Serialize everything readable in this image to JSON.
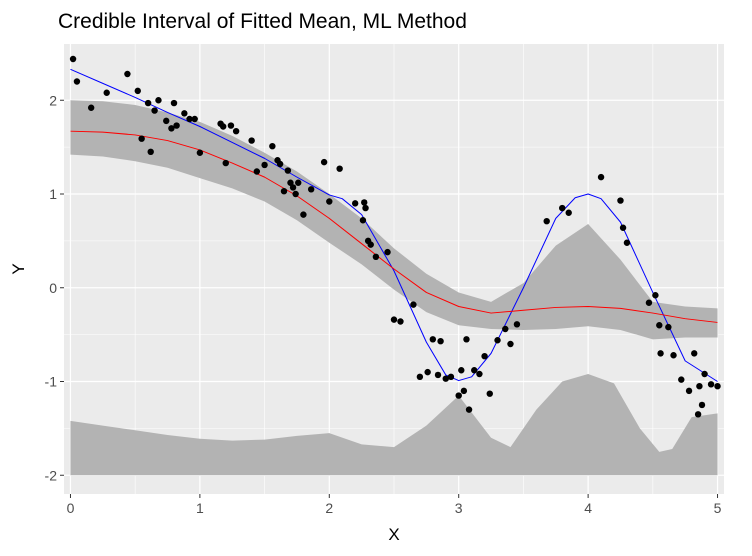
{
  "chart_data": {
    "type": "scatter",
    "title": "Credible Interval of Fitted Mean, ML Method",
    "xlabel": "X",
    "ylabel": "Y",
    "xlim": [
      -0.05,
      5.05
    ],
    "ylim": [
      -2.2,
      2.6
    ],
    "x_ticks": [
      0,
      1,
      2,
      3,
      4,
      5
    ],
    "y_ticks": [
      -2,
      -1,
      0,
      1,
      2
    ],
    "grid": true,
    "colors": {
      "panel": "#ebebeb",
      "grid": "#ffffff",
      "ribbon": "#b3b3b3",
      "points": "#000000",
      "true_curve": "#0000ff",
      "fitted_curve": "#ff0000"
    },
    "series": [
      {
        "kind": "points",
        "x": [
          0.02,
          0.05,
          0.16,
          0.28,
          0.44,
          0.52,
          0.55,
          0.6,
          0.62,
          0.65,
          0.68,
          0.74,
          0.78,
          0.8,
          0.82,
          0.88,
          0.92,
          0.96,
          1.0,
          1.16,
          1.18,
          1.2,
          1.24,
          1.28,
          1.4,
          1.44,
          1.5,
          1.56,
          1.6,
          1.62,
          1.65,
          1.68,
          1.7,
          1.72,
          1.74,
          1.76,
          1.8,
          1.86,
          1.96,
          2.0,
          2.08,
          2.2,
          2.26,
          2.27,
          2.28,
          2.3,
          2.32,
          2.36,
          2.45,
          2.5,
          2.55,
          2.65,
          2.7,
          2.76,
          2.8,
          2.84,
          2.86,
          2.9,
          2.94,
          3.0,
          3.02,
          3.04,
          3.06,
          3.08,
          3.12,
          3.16,
          3.2,
          3.24,
          3.3,
          3.36,
          3.4,
          3.45,
          3.68,
          3.8,
          3.85,
          4.1,
          4.25,
          4.27,
          4.3,
          4.47,
          4.52,
          4.55,
          4.56,
          4.62,
          4.66,
          4.72,
          4.78,
          4.82,
          4.85,
          4.86,
          4.88,
          4.9,
          4.95,
          5.0
        ],
        "y": [
          2.44,
          2.2,
          1.92,
          2.08,
          2.28,
          2.1,
          1.59,
          1.97,
          1.45,
          1.89,
          2.0,
          1.78,
          1.7,
          1.97,
          1.73,
          1.86,
          1.8,
          1.8,
          1.44,
          1.75,
          1.72,
          1.33,
          1.73,
          1.67,
          1.57,
          1.24,
          1.31,
          1.51,
          1.36,
          1.32,
          1.03,
          1.25,
          1.12,
          1.07,
          1.0,
          1.12,
          0.78,
          1.05,
          1.34,
          0.92,
          1.27,
          0.9,
          0.72,
          0.91,
          0.85,
          0.5,
          0.46,
          0.33,
          0.38,
          -0.34,
          -0.36,
          -0.18,
          -0.95,
          -0.9,
          -0.55,
          -0.93,
          -0.57,
          -0.97,
          -0.95,
          -1.15,
          -0.88,
          -1.1,
          -0.55,
          -1.3,
          -0.88,
          -0.92,
          -0.73,
          -1.13,
          -0.56,
          -0.44,
          -0.6,
          -0.39,
          0.71,
          0.85,
          0.8,
          1.18,
          0.93,
          0.64,
          0.48,
          -0.16,
          -0.08,
          -0.4,
          -0.7,
          -0.42,
          -0.72,
          -0.98,
          -1.1,
          -0.7,
          -1.35,
          -1.05,
          -1.25,
          -0.92,
          -1.03,
          -1.05
        ]
      },
      {
        "kind": "ribbon",
        "x": [
          0.0,
          0.25,
          0.5,
          0.75,
          1.0,
          1.25,
          1.5,
          1.75,
          2.0,
          2.25,
          2.5,
          2.75,
          3.0,
          3.25,
          3.5,
          3.75,
          4.0,
          4.25,
          4.5,
          4.75,
          5.0
        ],
        "upper": [
          2.0,
          1.99,
          1.95,
          1.87,
          1.77,
          1.62,
          1.44,
          1.24,
          1.0,
          0.74,
          0.42,
          0.15,
          -0.05,
          -0.15,
          0.05,
          0.45,
          0.68,
          0.3,
          -0.15,
          -0.2,
          -0.22
        ],
        "lower": [
          1.42,
          1.4,
          1.35,
          1.28,
          1.17,
          1.06,
          0.92,
          0.72,
          0.48,
          0.25,
          -0.02,
          -0.26,
          -0.4,
          -0.44,
          -0.45,
          -0.44,
          -0.41,
          -0.45,
          -0.55,
          -0.53,
          -0.53
        ]
      },
      {
        "kind": "ribbon",
        "x": [
          0.0,
          0.25,
          0.5,
          0.75,
          1.0,
          1.25,
          1.5,
          1.75,
          2.0,
          2.25,
          2.5,
          2.75,
          3.0,
          3.25,
          3.4,
          3.6,
          3.8,
          4.0,
          4.2,
          4.4,
          4.55,
          4.65,
          4.8,
          5.0
        ],
        "upper": [
          -1.42,
          -1.47,
          -1.52,
          -1.57,
          -1.61,
          -1.63,
          -1.62,
          -1.58,
          -1.55,
          -1.67,
          -1.7,
          -1.47,
          -1.15,
          -1.6,
          -1.7,
          -1.3,
          -1.0,
          -0.92,
          -1.02,
          -1.5,
          -1.75,
          -1.72,
          -1.38,
          -1.34
        ],
        "lower": [
          -2.0,
          -2.0,
          -2.0,
          -2.0,
          -2.0,
          -2.0,
          -2.0,
          -2.0,
          -2.0,
          -2.0,
          -2.0,
          -2.0,
          -2.0,
          -2.0,
          -2.0,
          -2.0,
          -2.0,
          -2.0,
          -2.0,
          -2.0,
          -2.0,
          -2.0,
          -2.0,
          -2.0
        ]
      },
      {
        "kind": "line",
        "color": "#0000ff",
        "x": [
          0.0,
          0.25,
          0.5,
          0.75,
          1.0,
          1.25,
          1.5,
          1.75,
          2.0,
          2.1,
          2.25,
          2.5,
          2.75,
          2.9,
          3.0,
          3.1,
          3.25,
          3.5,
          3.75,
          3.9,
          4.0,
          4.1,
          4.25,
          4.5,
          4.75,
          5.0
        ],
        "y": [
          2.33,
          2.18,
          2.03,
          1.87,
          1.72,
          1.55,
          1.38,
          1.18,
          0.99,
          0.95,
          0.78,
          0.18,
          -0.58,
          -0.93,
          -0.99,
          -0.95,
          -0.7,
          0.0,
          0.74,
          0.96,
          1.0,
          0.95,
          0.7,
          -0.05,
          -0.78,
          -1.0
        ]
      },
      {
        "kind": "line",
        "color": "#ff0000",
        "x": [
          0.0,
          0.25,
          0.5,
          0.75,
          1.0,
          1.25,
          1.5,
          1.75,
          2.0,
          2.25,
          2.5,
          2.75,
          3.0,
          3.25,
          3.5,
          3.75,
          4.0,
          4.25,
          4.5,
          4.75,
          5.0
        ],
        "y": [
          1.67,
          1.66,
          1.63,
          1.57,
          1.47,
          1.33,
          1.18,
          0.98,
          0.74,
          0.47,
          0.2,
          -0.05,
          -0.2,
          -0.27,
          -0.24,
          -0.21,
          -0.2,
          -0.22,
          -0.27,
          -0.33,
          -0.37
        ]
      }
    ]
  }
}
